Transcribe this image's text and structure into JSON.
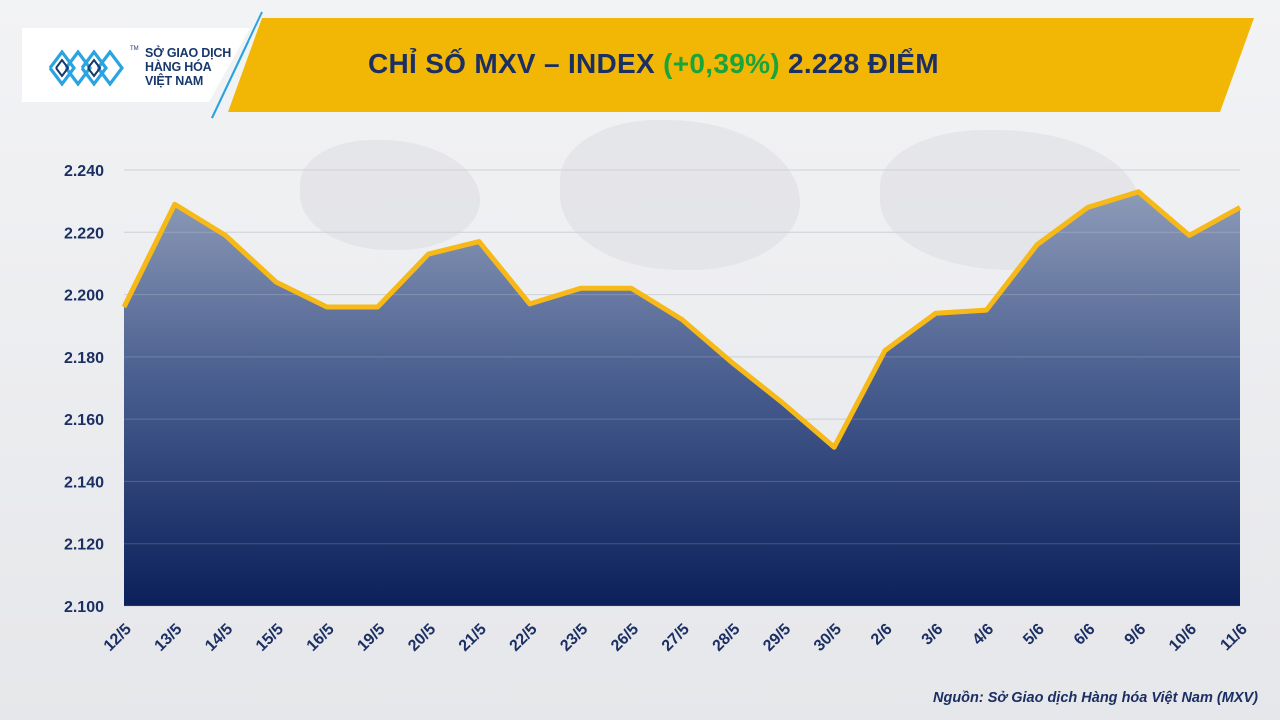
{
  "header": {
    "logo_lines": [
      "SỞ GIAO DỊCH",
      "HÀNG HÓA",
      "VIỆT NAM"
    ],
    "logo_tm": "TM",
    "title_prefix": "CHỈ SỐ MXV – INDEX ",
    "title_change": "(+0,39%)",
    "title_suffix": " 2.228 ĐIỂM"
  },
  "source_note": "Nguồn: Sở Giao dịch Hàng hóa Việt Nam (MXV)",
  "colors": {
    "band": "#f2b705",
    "line": "#f6b918",
    "area_top": "#8d9bb8",
    "area_bottom": "#0b1f5a",
    "accent_blue": "#2aa3e0",
    "positive": "#1aa43c",
    "text": "#1b2f63"
  },
  "chart_data": {
    "type": "area",
    "title": "CHỈ SỐ MXV – INDEX (+0,39%) 2.228 ĐIỂM",
    "xlabel": "",
    "ylabel": "",
    "categories": [
      "12/5",
      "13/5",
      "14/5",
      "15/5",
      "16/5",
      "19/5",
      "20/5",
      "21/5",
      "22/5",
      "23/5",
      "26/5",
      "27/5",
      "28/5",
      "29/5",
      "30/5",
      "2/6",
      "3/6",
      "4/6",
      "5/6",
      "6/6",
      "9/6",
      "10/6",
      "11/6"
    ],
    "series": [
      {
        "values": [
          2196,
          2229,
          2219,
          2204,
          2196,
          2196,
          2213,
          2217,
          2197,
          2202,
          2202,
          2192,
          2178,
          2165,
          2151,
          2182,
          2194,
          2195,
          2216,
          2228,
          2233,
          2219,
          2228
        ]
      }
    ],
    "ylim": [
      2100,
      2240
    ],
    "yticks": [
      2100,
      2120,
      2140,
      2160,
      2180,
      2200,
      2220,
      2240
    ],
    "ytick_labels": [
      "2.100",
      "2.120",
      "2.140",
      "2.160",
      "2.180",
      "2.200",
      "2.220",
      "2.240"
    ],
    "grid": true,
    "legend": "none"
  }
}
